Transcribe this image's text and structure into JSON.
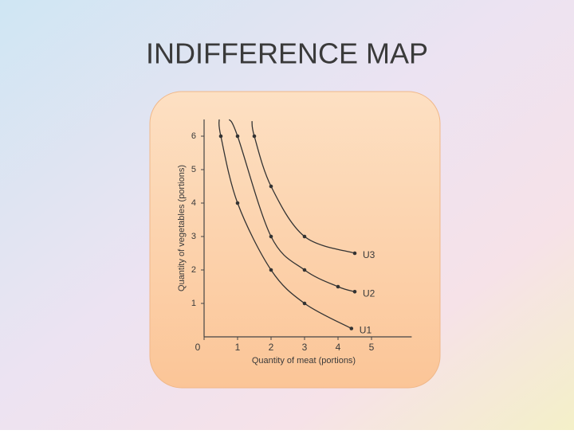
{
  "chart_data": {
    "type": "line",
    "title": "INDIFFERENCE MAP",
    "x_label": "Quantity of meat (portions)",
    "y_label": "Quantity of vegetables (portions)",
    "xlim": [
      0,
      6.2
    ],
    "ylim": [
      0,
      6.5
    ],
    "xticks": [
      0,
      1,
      2,
      3,
      4,
      5
    ],
    "yticks": [
      1,
      2,
      3,
      4,
      5,
      6
    ],
    "series": [
      {
        "name": "U1",
        "color": "#333333",
        "x": [
          0.45,
          0.5,
          1,
          2,
          3,
          4.4
        ],
        "values": [
          6.5,
          6,
          4,
          2,
          1,
          0.25
        ]
      },
      {
        "name": "U2",
        "color": "#333333",
        "x": [
          0.75,
          1,
          2,
          3,
          4,
          4.5
        ],
        "values": [
          6.5,
          6,
          3,
          2,
          1.5,
          1.35
        ]
      },
      {
        "name": "U3",
        "color": "#333333",
        "x": [
          1.43,
          1.5,
          2,
          3,
          4.5
        ],
        "values": [
          6.45,
          6,
          4.5,
          3,
          2.5
        ]
      }
    ]
  }
}
